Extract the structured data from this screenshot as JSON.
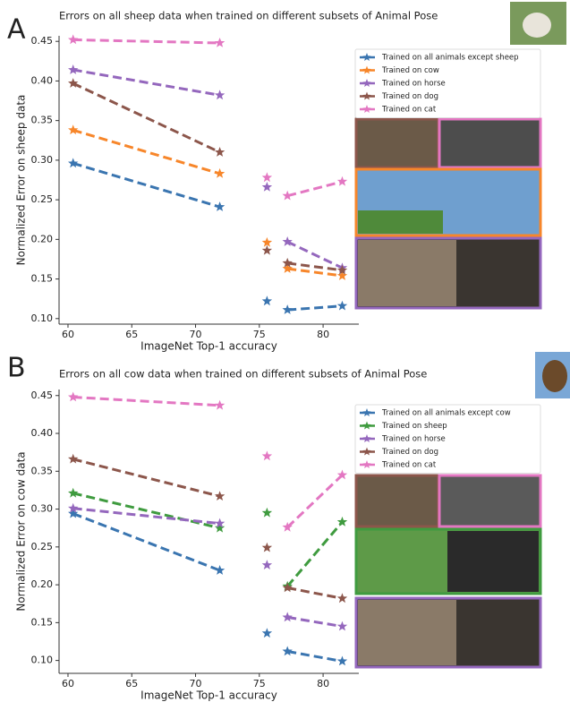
{
  "chart_data": [
    {
      "type": "line",
      "panel": "A",
      "title": "Errors on all sheep data when trained on different subsets of Animal Pose",
      "xlabel": "ImageNet Top-1 accuracy",
      "ylabel": "Normalized Error on sheep data",
      "xlim": [
        59.3,
        82.8
      ],
      "xticks": [
        60,
        65,
        70,
        75,
        80
      ],
      "ylim": [
        0.093,
        0.457
      ],
      "yticks": [
        {
          "value": 0.1,
          "label": "0.10"
        },
        0.15,
        {
          "value": 0.2,
          "label": "0.20"
        },
        0.25,
        {
          "value": 0.3,
          "label": "0.30"
        },
        0.35,
        {
          "value": 0.4,
          "label": "0.40"
        },
        0.45
      ],
      "x": [
        60.4,
        71.9,
        null,
        75.6,
        null,
        77.2,
        81.5
      ],
      "legend": "upper right",
      "series": [
        {
          "name": "Trained on all animals except sheep",
          "color": "#3a75b0",
          "values": [
            0.296,
            0.241,
            null,
            0.122,
            null,
            0.111,
            0.116
          ]
        },
        {
          "name": "Trained on cow",
          "color": "#f7862a",
          "values": [
            0.338,
            0.283,
            null,
            0.196,
            null,
            0.163,
            0.154
          ]
        },
        {
          "name": "Trained on horse",
          "color": "#9467bd",
          "values": [
            0.414,
            0.382,
            null,
            0.266,
            null,
            0.197,
            0.164
          ]
        },
        {
          "name": "Trained on dog",
          "color": "#8c564b",
          "values": [
            0.397,
            0.31,
            null,
            0.186,
            null,
            0.17,
            0.161
          ]
        },
        {
          "name": "Trained on cat",
          "color": "#e377c2",
          "values": [
            0.452,
            0.448,
            null,
            0.278,
            null,
            0.255,
            0.273
          ]
        }
      ]
    },
    {
      "type": "line",
      "panel": "B",
      "title": "Errors on all cow data when trained on different subsets of Animal Pose",
      "xlabel": "ImageNet Top-1 accuracy",
      "ylabel": "Normalized Error on cow data",
      "xlim": [
        59.3,
        82.8
      ],
      "xticks": [
        60,
        65,
        70,
        75,
        80
      ],
      "ylim": [
        0.083,
        0.458
      ],
      "yticks": [
        {
          "value": 0.1,
          "label": "0.10"
        },
        0.15,
        {
          "value": 0.2,
          "label": "0.20"
        },
        0.25,
        {
          "value": 0.3,
          "label": "0.30"
        },
        0.35,
        {
          "value": 0.4,
          "label": "0.40"
        },
        0.45
      ],
      "x": [
        60.4,
        71.9,
        null,
        75.6,
        null,
        77.2,
        81.5
      ],
      "legend": "upper right",
      "series": [
        {
          "name": "Trained on all animals except cow",
          "color": "#3a75b0",
          "values": [
            0.294,
            0.219,
            null,
            0.136,
            null,
            0.112,
            0.099
          ]
        },
        {
          "name": "Trained on sheep",
          "color": "#3f9b3f",
          "values": [
            0.321,
            0.275,
            null,
            0.295,
            null,
            0.198,
            0.283
          ]
        },
        {
          "name": "Trained on horse",
          "color": "#9467bd",
          "values": [
            0.301,
            0.281,
            null,
            0.226,
            null,
            0.157,
            0.145
          ]
        },
        {
          "name": "Trained on dog",
          "color": "#8c564b",
          "values": [
            0.366,
            0.317,
            null,
            0.249,
            null,
            0.196,
            0.182
          ]
        },
        {
          "name": "Trained on cat",
          "color": "#e377c2",
          "values": [
            0.448,
            0.437,
            null,
            0.37,
            null,
            0.276,
            0.345
          ]
        }
      ]
    }
  ]
}
